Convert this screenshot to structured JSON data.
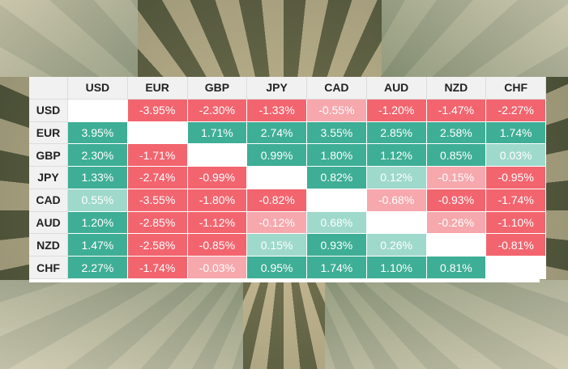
{
  "chart_data": {
    "type": "heatmap",
    "currencies": [
      "USD",
      "EUR",
      "GBP",
      "JPY",
      "CAD",
      "AUD",
      "NZD",
      "CHF"
    ],
    "rows": [
      {
        "label": "USD",
        "values": [
          null,
          "-3.95%",
          "-2.30%",
          "-1.33%",
          "-0.55%",
          "-1.20%",
          "-1.47%",
          "-2.27%"
        ]
      },
      {
        "label": "EUR",
        "values": [
          "3.95%",
          null,
          "1.71%",
          "2.74%",
          "3.55%",
          "2.85%",
          "2.58%",
          "1.74%"
        ]
      },
      {
        "label": "GBP",
        "values": [
          "2.30%",
          "-1.71%",
          null,
          "0.99%",
          "1.80%",
          "1.12%",
          "0.85%",
          "0.03%"
        ]
      },
      {
        "label": "JPY",
        "values": [
          "1.33%",
          "-2.74%",
          "-0.99%",
          null,
          "0.82%",
          "0.12%",
          "-0.15%",
          "-0.95%"
        ]
      },
      {
        "label": "CAD",
        "values": [
          "0.55%",
          "-3.55%",
          "-1.80%",
          "-0.82%",
          null,
          "-0.68%",
          "-0.93%",
          "-1.74%"
        ]
      },
      {
        "label": "AUD",
        "values": [
          "1.20%",
          "-2.85%",
          "-1.12%",
          "-0.12%",
          "0.68%",
          null,
          "-0.26%",
          "-1.10%"
        ]
      },
      {
        "label": "NZD",
        "values": [
          "1.47%",
          "-2.58%",
          "-0.85%",
          "0.15%",
          "0.93%",
          "0.26%",
          null,
          "-0.81%"
        ]
      },
      {
        "label": "CHF",
        "values": [
          "2.27%",
          "-1.74%",
          "-0.03%",
          "0.95%",
          "1.74%",
          "1.10%",
          "0.81%",
          null
        ]
      }
    ],
    "colors": {
      "strong_positive": "#3fae96",
      "weak_positive": "#9fd9cc",
      "strong_negative": "#f2656f",
      "weak_negative": "#f6a8ad"
    },
    "weak_threshold": 0.7
  }
}
